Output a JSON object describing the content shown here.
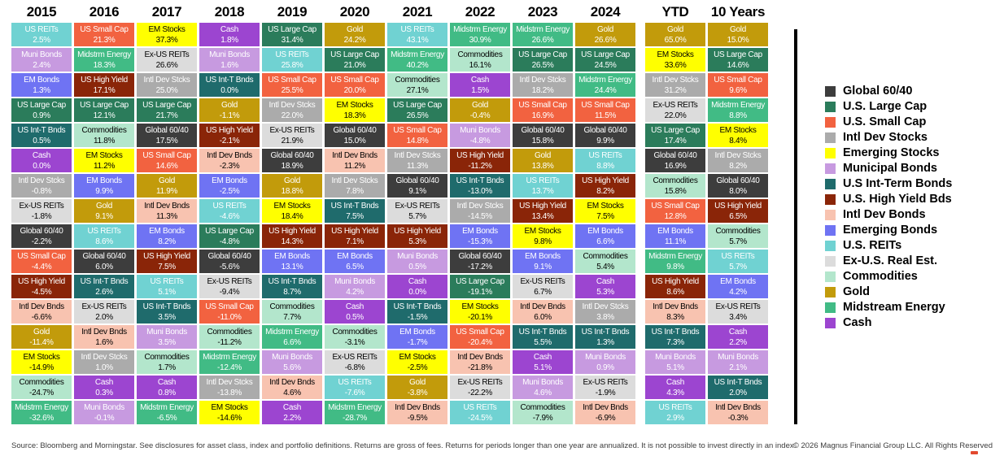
{
  "chart_data": {
    "type": "table",
    "description": "Asset class annual returns quilt (periodic table of returns)",
    "assets": {
      "global_6040": {
        "cell_label": "Global 60/40",
        "legend_label": "Global 60/40",
        "color": "#3d3d3d",
        "text_color": "#ffffff"
      },
      "us_large_cap": {
        "cell_label": "US Large Cap",
        "legend_label": "U.S. Large Cap",
        "color": "#2b7c5b",
        "text_color": "#ffffff"
      },
      "us_small_cap": {
        "cell_label": "US Small Cap",
        "legend_label": "U.S. Small Cap",
        "color": "#f26240",
        "text_color": "#ffffff"
      },
      "intl_dev_stocks": {
        "cell_label": "Intl Dev Stcks",
        "legend_label": "Intl Dev Stocks",
        "color": "#ababab",
        "text_color": "#ffffff"
      },
      "em_stocks": {
        "cell_label": "EM Stocks",
        "legend_label": "Emerging Stocks",
        "color": "#ffff00",
        "text_color": "#000000"
      },
      "muni_bonds": {
        "cell_label": "Muni Bonds",
        "legend_label": "Municipal Bonds",
        "color": "#c79ae0",
        "text_color": "#ffffff"
      },
      "us_int_t_bonds": {
        "cell_label": "US Int-T Bnds",
        "legend_label": "U.S Int-Term Bonds",
        "color": "#1f6b6c",
        "text_color": "#ffffff"
      },
      "us_high_yield": {
        "cell_label": "US High Yield",
        "legend_label": "U.S. High Yield Bds",
        "color": "#8a2508",
        "text_color": "#ffffff"
      },
      "intl_dev_bonds": {
        "cell_label": "Intl Dev Bnds",
        "legend_label": "Intl Dev Bonds",
        "color": "#f8c3b0",
        "text_color": "#000000"
      },
      "em_bonds": {
        "cell_label": "EM Bonds",
        "legend_label": "Emerging Bonds",
        "color": "#6f73f3",
        "text_color": "#ffffff"
      },
      "us_reits": {
        "cell_label": "US REITs",
        "legend_label": "U.S. REITs",
        "color": "#70d2d2",
        "text_color": "#ffffff"
      },
      "ex_us_reits": {
        "cell_label": "Ex-US REITs",
        "legend_label": "Ex-U.S. Real Est.",
        "color": "#dcdcdc",
        "text_color": "#000000"
      },
      "commodities": {
        "cell_label": "Commodities",
        "legend_label": "Commodities",
        "color": "#b3e6cc",
        "text_color": "#000000"
      },
      "gold": {
        "cell_label": "Gold",
        "legend_label": "Gold",
        "color": "#c29b0b",
        "text_color": "#ffffff"
      },
      "midstrm_energy": {
        "cell_label": "Midstrm Energy",
        "legend_label": "Midstream Energy",
        "color": "#41bb85",
        "text_color": "#ffffff"
      },
      "cash": {
        "cell_label": "Cash",
        "legend_label": "Cash",
        "color": "#9c45d0",
        "text_color": "#ffffff"
      }
    },
    "legend_order": [
      "global_6040",
      "us_large_cap",
      "us_small_cap",
      "intl_dev_stocks",
      "em_stocks",
      "muni_bonds",
      "us_int_t_bonds",
      "us_high_yield",
      "intl_dev_bonds",
      "em_bonds",
      "us_reits",
      "ex_us_reits",
      "commodities",
      "gold",
      "midstrm_energy",
      "cash"
    ],
    "columns": [
      {
        "label": "2015",
        "cells": [
          [
            "us_reits",
            "2.5%"
          ],
          [
            "muni_bonds",
            "2.4%"
          ],
          [
            "em_bonds",
            "1.3%"
          ],
          [
            "us_large_cap",
            "0.9%"
          ],
          [
            "us_int_t_bonds",
            "0.5%"
          ],
          [
            "cash",
            "0.0%"
          ],
          [
            "intl_dev_stocks",
            "-0.8%"
          ],
          [
            "ex_us_reits",
            "-1.8%"
          ],
          [
            "global_6040",
            "-2.2%"
          ],
          [
            "us_small_cap",
            "-4.4%"
          ],
          [
            "us_high_yield",
            "-4.5%"
          ],
          [
            "intl_dev_bonds",
            "-6.6%"
          ],
          [
            "gold",
            "-11.4%"
          ],
          [
            "em_stocks",
            "-14.9%"
          ],
          [
            "commodities",
            "-24.7%"
          ],
          [
            "midstrm_energy",
            "-32.6%"
          ]
        ]
      },
      {
        "label": "2016",
        "cells": [
          [
            "us_small_cap",
            "21.3%"
          ],
          [
            "midstrm_energy",
            "18.3%"
          ],
          [
            "us_high_yield",
            "17.1%"
          ],
          [
            "us_large_cap",
            "12.1%"
          ],
          [
            "commodities",
            "11.8%"
          ],
          [
            "em_stocks",
            "11.2%"
          ],
          [
            "em_bonds",
            "9.9%"
          ],
          [
            "gold",
            "9.1%"
          ],
          [
            "us_reits",
            "8.6%"
          ],
          [
            "global_6040",
            "6.0%"
          ],
          [
            "us_int_t_bonds",
            "2.6%"
          ],
          [
            "ex_us_reits",
            "2.0%"
          ],
          [
            "intl_dev_bonds",
            "1.6%"
          ],
          [
            "intl_dev_stocks",
            "1.0%"
          ],
          [
            "cash",
            "0.3%"
          ],
          [
            "muni_bonds",
            "-0.1%"
          ]
        ]
      },
      {
        "label": "2017",
        "cells": [
          [
            "em_stocks",
            "37.3%"
          ],
          [
            "ex_us_reits",
            "26.6%"
          ],
          [
            "intl_dev_stocks",
            "25.0%"
          ],
          [
            "us_large_cap",
            "21.7%"
          ],
          [
            "global_6040",
            "17.5%"
          ],
          [
            "us_small_cap",
            "14.6%"
          ],
          [
            "gold",
            "11.9%"
          ],
          [
            "intl_dev_bonds",
            "11.3%"
          ],
          [
            "em_bonds",
            "8.2%"
          ],
          [
            "us_high_yield",
            "7.5%"
          ],
          [
            "us_reits",
            "5.1%"
          ],
          [
            "us_int_t_bonds",
            "3.5%"
          ],
          [
            "muni_bonds",
            "3.5%"
          ],
          [
            "commodities",
            "1.7%"
          ],
          [
            "cash",
            "0.8%"
          ],
          [
            "midstrm_energy",
            "-6.5%"
          ]
        ]
      },
      {
        "label": "2018",
        "cells": [
          [
            "cash",
            "1.8%"
          ],
          [
            "muni_bonds",
            "1.6%"
          ],
          [
            "us_int_t_bonds",
            "0.0%"
          ],
          [
            "gold",
            "-1.1%"
          ],
          [
            "us_high_yield",
            "-2.1%"
          ],
          [
            "intl_dev_bonds",
            "-2.3%"
          ],
          [
            "em_bonds",
            "-2.5%"
          ],
          [
            "us_reits",
            "-4.6%"
          ],
          [
            "us_large_cap",
            "-4.8%"
          ],
          [
            "global_6040",
            "-5.6%"
          ],
          [
            "ex_us_reits",
            "-9.4%"
          ],
          [
            "us_small_cap",
            "-11.0%"
          ],
          [
            "commodities",
            "-11.2%"
          ],
          [
            "midstrm_energy",
            "-12.4%"
          ],
          [
            "intl_dev_stocks",
            "-13.8%"
          ],
          [
            "em_stocks",
            "-14.6%"
          ]
        ]
      },
      {
        "label": "2019",
        "cells": [
          [
            "us_large_cap",
            "31.4%"
          ],
          [
            "us_reits",
            "25.8%"
          ],
          [
            "us_small_cap",
            "25.5%"
          ],
          [
            "intl_dev_stocks",
            "22.0%"
          ],
          [
            "ex_us_reits",
            "21.9%"
          ],
          [
            "global_6040",
            "18.9%"
          ],
          [
            "gold",
            "18.8%"
          ],
          [
            "em_stocks",
            "18.4%"
          ],
          [
            "us_high_yield",
            "14.3%"
          ],
          [
            "em_bonds",
            "13.1%"
          ],
          [
            "us_int_t_bonds",
            "8.7%"
          ],
          [
            "commodities",
            "7.7%"
          ],
          [
            "midstrm_energy",
            "6.6%"
          ],
          [
            "muni_bonds",
            "5.6%"
          ],
          [
            "intl_dev_bonds",
            "4.6%"
          ],
          [
            "cash",
            "2.2%"
          ]
        ]
      },
      {
        "label": "2020",
        "cells": [
          [
            "gold",
            "24.2%"
          ],
          [
            "us_large_cap",
            "21.0%"
          ],
          [
            "us_small_cap",
            "20.0%"
          ],
          [
            "em_stocks",
            "18.3%"
          ],
          [
            "global_6040",
            "15.0%"
          ],
          [
            "intl_dev_bonds",
            "11.2%"
          ],
          [
            "intl_dev_stocks",
            "7.8%"
          ],
          [
            "us_int_t_bonds",
            "7.5%"
          ],
          [
            "us_high_yield",
            "7.1%"
          ],
          [
            "em_bonds",
            "6.5%"
          ],
          [
            "muni_bonds",
            "4.2%"
          ],
          [
            "cash",
            "0.5%"
          ],
          [
            "commodities",
            "-3.1%"
          ],
          [
            "ex_us_reits",
            "-6.8%"
          ],
          [
            "us_reits",
            "-7.6%"
          ],
          [
            "midstrm_energy",
            "-28.7%"
          ]
        ]
      },
      {
        "label": "2021",
        "cells": [
          [
            "us_reits",
            "43.1%"
          ],
          [
            "midstrm_energy",
            "40.2%"
          ],
          [
            "commodities",
            "27.1%"
          ],
          [
            "us_large_cap",
            "26.5%"
          ],
          [
            "us_small_cap",
            "14.8%"
          ],
          [
            "intl_dev_stocks",
            "11.3%"
          ],
          [
            "global_6040",
            "9.1%"
          ],
          [
            "ex_us_reits",
            "5.7%"
          ],
          [
            "us_high_yield",
            "5.3%"
          ],
          [
            "muni_bonds",
            "0.5%"
          ],
          [
            "cash",
            "0.0%"
          ],
          [
            "us_int_t_bonds",
            "-1.5%"
          ],
          [
            "em_bonds",
            "-1.7%"
          ],
          [
            "em_stocks",
            "-2.5%"
          ],
          [
            "gold",
            "-3.8%"
          ],
          [
            "intl_dev_bonds",
            "-9.5%"
          ]
        ]
      },
      {
        "label": "2022",
        "cells": [
          [
            "midstrm_energy",
            "30.9%"
          ],
          [
            "commodities",
            "16.1%"
          ],
          [
            "cash",
            "1.5%"
          ],
          [
            "gold",
            "-0.4%"
          ],
          [
            "muni_bonds",
            "-4.8%"
          ],
          [
            "us_high_yield",
            "-11.2%"
          ],
          [
            "us_int_t_bonds",
            "-13.0%"
          ],
          [
            "intl_dev_stocks",
            "-14.5%"
          ],
          [
            "em_bonds",
            "-15.3%"
          ],
          [
            "global_6040",
            "-17.2%"
          ],
          [
            "us_large_cap",
            "-19.1%"
          ],
          [
            "em_stocks",
            "-20.1%"
          ],
          [
            "us_small_cap",
            "-20.4%"
          ],
          [
            "intl_dev_bonds",
            "-21.8%"
          ],
          [
            "ex_us_reits",
            "-22.2%"
          ],
          [
            "us_reits",
            "-24.5%"
          ]
        ]
      },
      {
        "label": "2023",
        "cells": [
          [
            "midstrm_energy",
            "26.6%"
          ],
          [
            "us_large_cap",
            "26.5%"
          ],
          [
            "intl_dev_stocks",
            "18.2%"
          ],
          [
            "us_small_cap",
            "16.9%"
          ],
          [
            "global_6040",
            "15.8%"
          ],
          [
            "gold",
            "13.8%"
          ],
          [
            "us_reits",
            "13.7%"
          ],
          [
            "us_high_yield",
            "13.4%"
          ],
          [
            "em_stocks",
            "9.8%"
          ],
          [
            "em_bonds",
            "9.1%"
          ],
          [
            "ex_us_reits",
            "6.7%"
          ],
          [
            "intl_dev_bonds",
            "6.0%"
          ],
          [
            "us_int_t_bonds",
            "5.5%"
          ],
          [
            "cash",
            "5.1%"
          ],
          [
            "muni_bonds",
            "4.6%"
          ],
          [
            "commodities",
            "-7.9%"
          ]
        ]
      },
      {
        "label": "2024",
        "cells": [
          [
            "gold",
            "26.6%"
          ],
          [
            "us_large_cap",
            "24.5%"
          ],
          [
            "midstrm_energy",
            "24.4%"
          ],
          [
            "us_small_cap",
            "11.5%"
          ],
          [
            "global_6040",
            "9.9%"
          ],
          [
            "us_reits",
            "8.8%"
          ],
          [
            "us_high_yield",
            "8.2%"
          ],
          [
            "em_stocks",
            "7.5%"
          ],
          [
            "em_bonds",
            "6.6%"
          ],
          [
            "commodities",
            "5.4%"
          ],
          [
            "cash",
            "5.3%"
          ],
          [
            "intl_dev_stocks",
            "3.8%"
          ],
          [
            "us_int_t_bonds",
            "1.3%"
          ],
          [
            "muni_bonds",
            "0.9%"
          ],
          [
            "ex_us_reits",
            "-1.9%"
          ],
          [
            "intl_dev_bonds",
            "-6.9%"
          ]
        ]
      },
      {
        "label": "YTD",
        "gap_before": true,
        "cells": [
          [
            "gold",
            "65.0%"
          ],
          [
            "em_stocks",
            "33.6%"
          ],
          [
            "intl_dev_stocks",
            "31.2%"
          ],
          [
            "ex_us_reits",
            "22.0%"
          ],
          [
            "us_large_cap",
            "17.4%"
          ],
          [
            "global_6040",
            "16.9%"
          ],
          [
            "commodities",
            "15.8%"
          ],
          [
            "us_small_cap",
            "12.8%"
          ],
          [
            "em_bonds",
            "11.1%"
          ],
          [
            "midstrm_energy",
            "9.8%"
          ],
          [
            "us_high_yield",
            "8.6%"
          ],
          [
            "intl_dev_bonds",
            "8.3%"
          ],
          [
            "us_int_t_bonds",
            "7.3%"
          ],
          [
            "muni_bonds",
            "5.1%"
          ],
          [
            "cash",
            "4.3%"
          ],
          [
            "us_reits",
            "2.9%"
          ]
        ]
      },
      {
        "label": "10 Years",
        "cells": [
          [
            "gold",
            "15.0%"
          ],
          [
            "us_large_cap",
            "14.6%"
          ],
          [
            "us_small_cap",
            "9.6%"
          ],
          [
            "midstrm_energy",
            "8.8%"
          ],
          [
            "em_stocks",
            "8.4%"
          ],
          [
            "intl_dev_stocks",
            "8.2%"
          ],
          [
            "global_6040",
            "8.0%"
          ],
          [
            "us_high_yield",
            "6.5%"
          ],
          [
            "commodities",
            "5.7%"
          ],
          [
            "us_reits",
            "5.7%"
          ],
          [
            "em_bonds",
            "4.2%"
          ],
          [
            "ex_us_reits",
            "3.4%"
          ],
          [
            "cash",
            "2.2%"
          ],
          [
            "muni_bonds",
            "2.1%"
          ],
          [
            "us_int_t_bonds",
            "2.0%"
          ],
          [
            "intl_dev_bonds",
            "-0.3%"
          ]
        ]
      }
    ]
  },
  "footer": {
    "source": "Source: Bloomberg and Morningstar. See disclosures for asset class, index and portfolio definitions. Returns are gross of fees. Returns for periods longer than one year are annualized. It is not possible to invest directly in an index.",
    "copyright": "© 2026 Magnus Financial Group LLC. All Rights Reserved"
  }
}
